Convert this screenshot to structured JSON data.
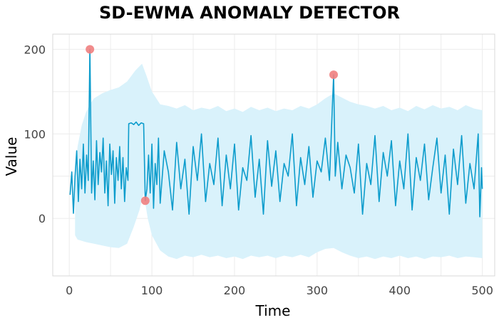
{
  "chart_data": {
    "type": "line",
    "title": "SD-EWMA ANOMALY DETECTOR",
    "xlabel": "Time",
    "ylabel": "Value",
    "xlim": [
      -20,
      515
    ],
    "ylim": [
      -68,
      218
    ],
    "x_ticks": [
      0,
      100,
      200,
      300,
      400,
      500
    ],
    "y_ticks": [
      0,
      100,
      200
    ],
    "grid": true,
    "colors": {
      "line": "#0c9ccc",
      "band": "#d9f2fb",
      "anomaly": "#f08080",
      "grid": "#ececec",
      "panel_border": "#d9d9d9"
    },
    "series": [
      {
        "values": [
          [
            1,
            28
          ],
          [
            3,
            55
          ],
          [
            5,
            6
          ],
          [
            7,
            50
          ],
          [
            9,
            80
          ],
          [
            11,
            20
          ],
          [
            13,
            70
          ],
          [
            15,
            35
          ],
          [
            17,
            88
          ],
          [
            19,
            30
          ],
          [
            21,
            75
          ],
          [
            23,
            45
          ],
          [
            25,
            200
          ],
          [
            27,
            30
          ],
          [
            29,
            68
          ],
          [
            31,
            22
          ],
          [
            33,
            92
          ],
          [
            35,
            40
          ],
          [
            37,
            78
          ],
          [
            39,
            55
          ],
          [
            41,
            95
          ],
          [
            43,
            30
          ],
          [
            45,
            68
          ],
          [
            47,
            15
          ],
          [
            49,
            88
          ],
          [
            51,
            52
          ],
          [
            53,
            80
          ],
          [
            55,
            18
          ],
          [
            57,
            72
          ],
          [
            59,
            45
          ],
          [
            61,
            85
          ],
          [
            63,
            35
          ],
          [
            65,
            72
          ],
          [
            67,
            20
          ],
          [
            69,
            60
          ],
          [
            71,
            45
          ],
          [
            72,
            112
          ],
          [
            75,
            113
          ],
          [
            78,
            111
          ],
          [
            81,
            114
          ],
          [
            84,
            110
          ],
          [
            87,
            113
          ],
          [
            90,
            112
          ],
          [
            92,
            21
          ],
          [
            94,
            35
          ],
          [
            96,
            75
          ],
          [
            98,
            30
          ],
          [
            100,
            88
          ],
          [
            102,
            12
          ],
          [
            104,
            65
          ],
          [
            106,
            40
          ],
          [
            108,
            95
          ],
          [
            110,
            18
          ],
          [
            115,
            80
          ],
          [
            120,
            55
          ],
          [
            125,
            10
          ],
          [
            130,
            90
          ],
          [
            135,
            35
          ],
          [
            140,
            70
          ],
          [
            145,
            5
          ],
          [
            150,
            85
          ],
          [
            155,
            45
          ],
          [
            160,
            100
          ],
          [
            165,
            20
          ],
          [
            170,
            65
          ],
          [
            175,
            40
          ],
          [
            180,
            95
          ],
          [
            185,
            15
          ],
          [
            190,
            75
          ],
          [
            195,
            35
          ],
          [
            200,
            88
          ],
          [
            205,
            10
          ],
          [
            210,
            60
          ],
          [
            215,
            45
          ],
          [
            220,
            98
          ],
          [
            225,
            25
          ],
          [
            230,
            70
          ],
          [
            235,
            5
          ],
          [
            240,
            92
          ],
          [
            245,
            38
          ],
          [
            250,
            80
          ],
          [
            255,
            20
          ],
          [
            260,
            65
          ],
          [
            265,
            50
          ],
          [
            270,
            100
          ],
          [
            275,
            15
          ],
          [
            280,
            72
          ],
          [
            285,
            40
          ],
          [
            290,
            85
          ],
          [
            295,
            25
          ],
          [
            300,
            68
          ],
          [
            305,
            55
          ],
          [
            310,
            95
          ],
          [
            315,
            45
          ],
          [
            320,
            170
          ],
          [
            322,
            50
          ],
          [
            325,
            90
          ],
          [
            330,
            35
          ],
          [
            335,
            75
          ],
          [
            340,
            60
          ],
          [
            345,
            30
          ],
          [
            350,
            88
          ],
          [
            355,
            5
          ],
          [
            360,
            65
          ],
          [
            365,
            40
          ],
          [
            370,
            98
          ],
          [
            375,
            20
          ],
          [
            380,
            78
          ],
          [
            385,
            50
          ],
          [
            390,
            92
          ],
          [
            395,
            15
          ],
          [
            400,
            68
          ],
          [
            405,
            35
          ],
          [
            410,
            100
          ],
          [
            415,
            10
          ],
          [
            420,
            72
          ],
          [
            425,
            45
          ],
          [
            430,
            88
          ],
          [
            435,
            22
          ],
          [
            440,
            60
          ],
          [
            445,
            95
          ],
          [
            450,
            30
          ],
          [
            455,
            75
          ],
          [
            460,
            5
          ],
          [
            465,
            82
          ],
          [
            470,
            40
          ],
          [
            475,
            98
          ],
          [
            480,
            18
          ],
          [
            485,
            65
          ],
          [
            490,
            35
          ],
          [
            495,
            100
          ],
          [
            497,
            2
          ],
          [
            499,
            60
          ],
          [
            500,
            35
          ]
        ]
      }
    ],
    "band": {
      "upper": [
        [
          7,
          50
        ],
        [
          10,
          85
        ],
        [
          15,
          110
        ],
        [
          20,
          125
        ],
        [
          25,
          135
        ],
        [
          30,
          142
        ],
        [
          40,
          148
        ],
        [
          50,
          152
        ],
        [
          60,
          155
        ],
        [
          70,
          162
        ],
        [
          80,
          175
        ],
        [
          88,
          183
        ],
        [
          93,
          170
        ],
        [
          100,
          150
        ],
        [
          110,
          135
        ],
        [
          120,
          133
        ],
        [
          130,
          130
        ],
        [
          140,
          134
        ],
        [
          150,
          128
        ],
        [
          160,
          131
        ],
        [
          170,
          129
        ],
        [
          180,
          133
        ],
        [
          190,
          127
        ],
        [
          200,
          130
        ],
        [
          210,
          126
        ],
        [
          220,
          132
        ],
        [
          230,
          128
        ],
        [
          240,
          131
        ],
        [
          250,
          127
        ],
        [
          260,
          130
        ],
        [
          270,
          128
        ],
        [
          280,
          133
        ],
        [
          290,
          130
        ],
        [
          300,
          135
        ],
        [
          310,
          142
        ],
        [
          320,
          148
        ],
        [
          330,
          143
        ],
        [
          340,
          138
        ],
        [
          350,
          135
        ],
        [
          360,
          133
        ],
        [
          370,
          130
        ],
        [
          380,
          133
        ],
        [
          390,
          128
        ],
        [
          400,
          131
        ],
        [
          410,
          127
        ],
        [
          420,
          133
        ],
        [
          430,
          129
        ],
        [
          440,
          134
        ],
        [
          450,
          130
        ],
        [
          460,
          132
        ],
        [
          470,
          128
        ],
        [
          480,
          134
        ],
        [
          490,
          130
        ],
        [
          500,
          128
        ]
      ],
      "lower": [
        [
          7,
          -20
        ],
        [
          10,
          -25
        ],
        [
          20,
          -28
        ],
        [
          30,
          -30
        ],
        [
          40,
          -32
        ],
        [
          50,
          -34
        ],
        [
          60,
          -35
        ],
        [
          70,
          -30
        ],
        [
          78,
          -10
        ],
        [
          85,
          10
        ],
        [
          90,
          30
        ],
        [
          95,
          0
        ],
        [
          100,
          -20
        ],
        [
          110,
          -38
        ],
        [
          120,
          -45
        ],
        [
          130,
          -48
        ],
        [
          140,
          -44
        ],
        [
          150,
          -46
        ],
        [
          160,
          -43
        ],
        [
          170,
          -46
        ],
        [
          180,
          -44
        ],
        [
          190,
          -47
        ],
        [
          200,
          -45
        ],
        [
          210,
          -48
        ],
        [
          220,
          -44
        ],
        [
          230,
          -46
        ],
        [
          240,
          -44
        ],
        [
          250,
          -47
        ],
        [
          260,
          -44
        ],
        [
          270,
          -46
        ],
        [
          280,
          -43
        ],
        [
          290,
          -46
        ],
        [
          300,
          -40
        ],
        [
          310,
          -36
        ],
        [
          320,
          -35
        ],
        [
          330,
          -40
        ],
        [
          340,
          -44
        ],
        [
          350,
          -47
        ],
        [
          360,
          -45
        ],
        [
          370,
          -48
        ],
        [
          380,
          -45
        ],
        [
          390,
          -47
        ],
        [
          400,
          -44
        ],
        [
          410,
          -47
        ],
        [
          420,
          -45
        ],
        [
          430,
          -48
        ],
        [
          440,
          -45
        ],
        [
          450,
          -46
        ],
        [
          460,
          -44
        ],
        [
          470,
          -47
        ],
        [
          480,
          -45
        ],
        [
          490,
          -46
        ],
        [
          500,
          -47
        ]
      ]
    },
    "anomalies": [
      [
        25,
        200
      ],
      [
        92,
        21
      ],
      [
        320,
        170
      ]
    ]
  }
}
